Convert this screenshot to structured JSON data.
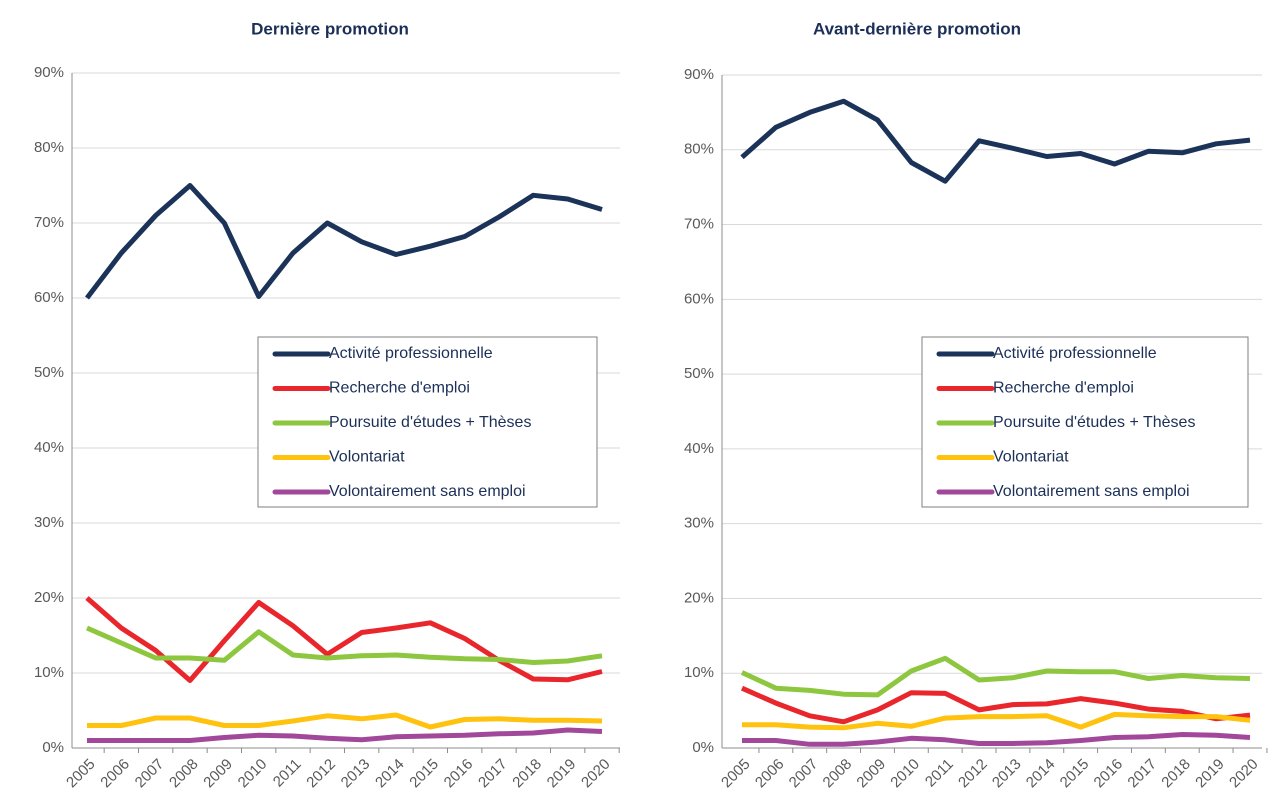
{
  "chart_data": [
    {
      "type": "line",
      "title": "Dernière promotion",
      "categories": [
        "2005",
        "2006",
        "2007",
        "2008",
        "2009",
        "2010",
        "2011",
        "2012",
        "2013",
        "2014",
        "2015",
        "2016",
        "2017",
        "2018",
        "2019",
        "2020"
      ],
      "ylim": [
        0,
        90
      ],
      "yticks": [
        {
          "value": 0,
          "label": "0%"
        },
        {
          "value": 10,
          "label": "10%"
        },
        {
          "value": 20,
          "label": "20%"
        },
        {
          "value": 30,
          "label": "30%"
        },
        {
          "value": 40,
          "label": "40%"
        },
        {
          "value": 50,
          "label": "50%"
        },
        {
          "value": 60,
          "label": "60%"
        },
        {
          "value": 70,
          "label": "70%"
        },
        {
          "value": 80,
          "label": "80%"
        },
        {
          "value": 90,
          "label": "90%"
        }
      ],
      "grid": true,
      "legend": "center-right",
      "series": [
        {
          "name": "Activité professionnelle",
          "color": "#1b3358",
          "values": [
            60,
            66,
            71,
            75,
            70,
            60.2,
            66,
            70,
            67.5,
            65.8,
            66.9,
            68.2,
            70.8,
            73.7,
            73.2,
            71.8
          ]
        },
        {
          "name": "Recherche d'emploi",
          "color": "#e8262b",
          "values": [
            20,
            16,
            13,
            9,
            14.3,
            19.4,
            16.3,
            12.5,
            15.4,
            16,
            16.7,
            14.6,
            11.7,
            9.2,
            9.1,
            10.2
          ]
        },
        {
          "name": "Poursuite d'études + Thèses",
          "color": "#8dc63f",
          "values": [
            16,
            14,
            12,
            12,
            11.7,
            15.5,
            12.4,
            12,
            12.3,
            12.4,
            12.1,
            11.9,
            11.8,
            11.4,
            11.6,
            12.3
          ]
        },
        {
          "name": "Volontariat",
          "color": "#ffc20e",
          "values": [
            3,
            3,
            4,
            4,
            3,
            3,
            3.6,
            4.3,
            3.9,
            4.4,
            2.8,
            3.8,
            3.9,
            3.7,
            3.7,
            3.6
          ]
        },
        {
          "name": "Volontairement sans emploi",
          "color": "#a2489a",
          "values": [
            1,
            1,
            1,
            1,
            1.4,
            1.7,
            1.6,
            1.3,
            1.1,
            1.5,
            1.6,
            1.7,
            1.9,
            2,
            2.4,
            2.2
          ]
        }
      ]
    },
    {
      "type": "line",
      "title": "Avant-dernière promotion",
      "categories": [
        "2005",
        "2006",
        "2007",
        "2008",
        "2009",
        "2010",
        "2011",
        "2012",
        "2013",
        "2014",
        "2015",
        "2016",
        "2017",
        "2018",
        "2019",
        "2020"
      ],
      "ylim": [
        0,
        90
      ],
      "yticks": [
        {
          "value": 0,
          "label": "0%"
        },
        {
          "value": 10,
          "label": "10%"
        },
        {
          "value": 20,
          "label": "20%"
        },
        {
          "value": 30,
          "label": "30%"
        },
        {
          "value": 40,
          "label": "40%"
        },
        {
          "value": 50,
          "label": "50%"
        },
        {
          "value": 60,
          "label": "60%"
        },
        {
          "value": 70,
          "label": "70%"
        },
        {
          "value": 80,
          "label": "80%"
        },
        {
          "value": 90,
          "label": "90%"
        }
      ],
      "grid": true,
      "legend": "center-right",
      "series": [
        {
          "name": "Activité professionnelle",
          "color": "#1b3358",
          "values": [
            79,
            83,
            85,
            86.5,
            84,
            78.3,
            75.8,
            81.2,
            80.2,
            79.1,
            79.5,
            78.1,
            79.8,
            79.6,
            80.8,
            81.3
          ]
        },
        {
          "name": "Recherche d'emploi",
          "color": "#e8262b",
          "values": [
            8,
            6,
            4.3,
            3.5,
            5.1,
            7.4,
            7.3,
            5.1,
            5.8,
            5.9,
            6.6,
            6,
            5.2,
            4.9,
            3.9,
            4.4
          ]
        },
        {
          "name": "Poursuite d'études + Thèses",
          "color": "#8dc63f",
          "values": [
            10.1,
            8,
            7.7,
            7.2,
            7.1,
            10.3,
            12,
            9.1,
            9.4,
            10.3,
            10.2,
            10.2,
            9.3,
            9.7,
            9.4,
            9.3
          ]
        },
        {
          "name": "Volontariat",
          "color": "#ffc20e",
          "values": [
            3.1,
            3.1,
            2.8,
            2.7,
            3.3,
            2.9,
            4,
            4.2,
            4.2,
            4.3,
            2.8,
            4.5,
            4.3,
            4.2,
            4.2,
            3.7
          ]
        },
        {
          "name": "Volontairement sans emploi",
          "color": "#a2489a",
          "values": [
            1,
            1,
            0.5,
            0.5,
            0.8,
            1.3,
            1.1,
            0.6,
            0.6,
            0.7,
            1,
            1.4,
            1.5,
            1.8,
            1.7,
            1.4
          ]
        }
      ]
    }
  ]
}
